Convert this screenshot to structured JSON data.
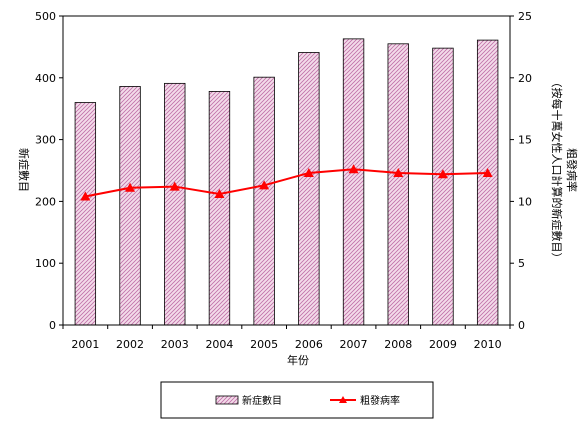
{
  "chart_data": {
    "type": "bar",
    "categories": [
      "2001",
      "2002",
      "2003",
      "2004",
      "2005",
      "2006",
      "2007",
      "2008",
      "2009",
      "2010"
    ],
    "series": [
      {
        "name": "新症數目",
        "type": "bar",
        "axis": "left",
        "values": [
          360,
          386,
          391,
          378,
          401,
          441,
          463,
          455,
          448,
          461
        ]
      },
      {
        "name": "粗發病率",
        "type": "line",
        "axis": "right",
        "values": [
          10.4,
          11.1,
          11.2,
          10.6,
          11.3,
          12.3,
          12.6,
          12.3,
          12.2,
          12.3
        ]
      }
    ],
    "xlabel": "年份",
    "ylabel_left": "新症數目",
    "ylabel_right": "粗發病率",
    "ylabel_right_sub": "（按每十萬女性人口計算的新症數目）",
    "ylim_left": [
      0,
      500
    ],
    "ylim_right": [
      0,
      25
    ],
    "yticks_left": [
      "0",
      "100",
      "200",
      "300",
      "400",
      "500"
    ],
    "yticks_right": [
      "0",
      "5",
      "10",
      "15",
      "20",
      "25"
    ],
    "legend_position": "bottom",
    "grid": false,
    "colors": {
      "bar_fill": "#f0c8e0",
      "bar_hatch": "#c070a8",
      "line": "#ff0000"
    }
  }
}
